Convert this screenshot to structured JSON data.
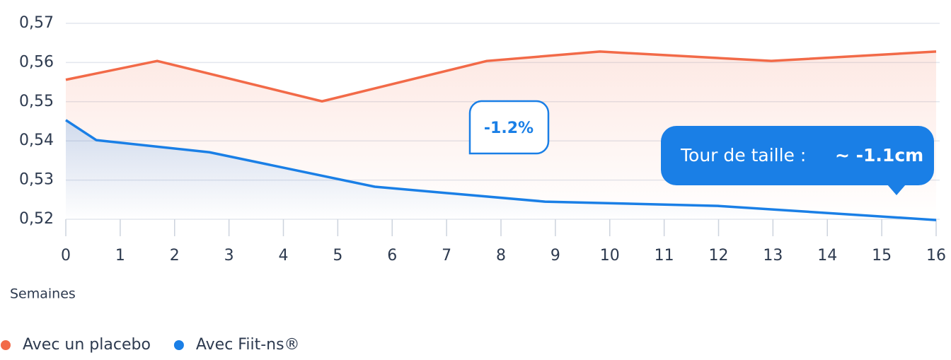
{
  "chart_data": {
    "type": "line",
    "x_label": "Semaines",
    "xlim": [
      0,
      16
    ],
    "xticks": [
      0,
      1,
      2,
      3,
      4,
      5,
      6,
      7,
      8,
      9,
      10,
      11,
      12,
      13,
      14,
      15,
      16
    ],
    "ylim": [
      0.52,
      0.57
    ],
    "yticks": [
      {
        "value": 0.52,
        "label": "0,52"
      },
      {
        "value": 0.53,
        "label": "0,53"
      },
      {
        "value": 0.54,
        "label": "0,54"
      },
      {
        "value": 0.55,
        "label": "0,55"
      },
      {
        "value": 0.56,
        "label": "0,56"
      },
      {
        "value": 0.57,
        "label": "0,57"
      }
    ],
    "grid": true,
    "series": [
      {
        "name": "Avec un placebo",
        "color": "#f26a48",
        "x": [
          0,
          1.68,
          4.71,
          7.74,
          9.82,
          12.97,
          16
        ],
        "values": [
          0.5556,
          0.5604,
          0.5501,
          0.5604,
          0.5628,
          0.5604,
          0.5628
        ]
      },
      {
        "name": "Avec Fiit-ns®",
        "color": "#1a7fe6",
        "x": [
          0,
          0.56,
          2.64,
          5.68,
          8.81,
          11.99,
          16
        ],
        "values": [
          0.5453,
          0.5402,
          0.5371,
          0.5283,
          0.5245,
          0.5234,
          0.5198
        ]
      }
    ],
    "annotations": {
      "difference": "-1.2%",
      "tooltip_label": "Tour de taille :",
      "tooltip_value": "~ -1.1cm"
    }
  }
}
